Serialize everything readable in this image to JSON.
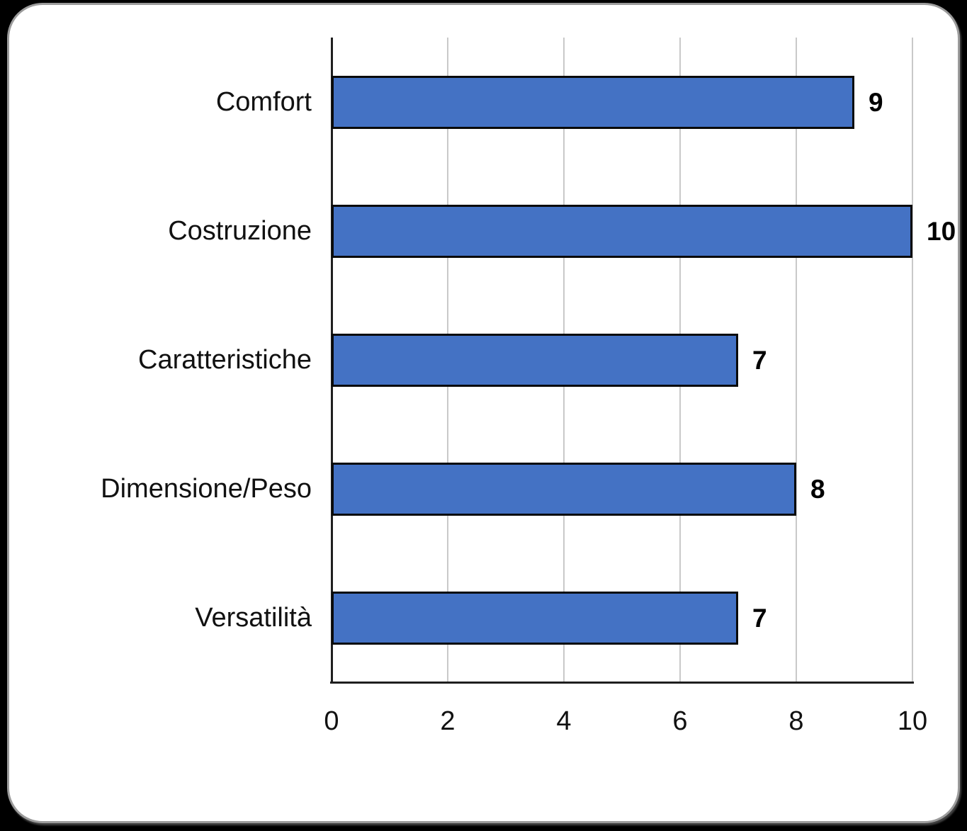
{
  "chart_data": {
    "type": "bar",
    "orientation": "horizontal",
    "title": "",
    "categories": [
      "Comfort",
      "Costruzione",
      "Caratteristiche",
      "Dimensione/Peso",
      "Versatilità"
    ],
    "values": [
      9,
      10,
      7,
      8,
      7
    ],
    "data_labels": [
      "9",
      "10",
      "7",
      "8",
      "7"
    ],
    "x_ticks": [
      "0",
      "2",
      "4",
      "6",
      "8",
      "10"
    ],
    "xlim": [
      0,
      10
    ],
    "grid": "vertical-gridlines-on",
    "legend": "none",
    "colors": {
      "bar_fill": "#4472C4",
      "bar_border": "#0a0a0a",
      "gridline": "#c9c9c9",
      "axis_line": "#1f1f1f",
      "text": "#111111",
      "card_background": "#ffffff",
      "outer_background": "#000000",
      "card_border": "#9b9b9b"
    }
  }
}
